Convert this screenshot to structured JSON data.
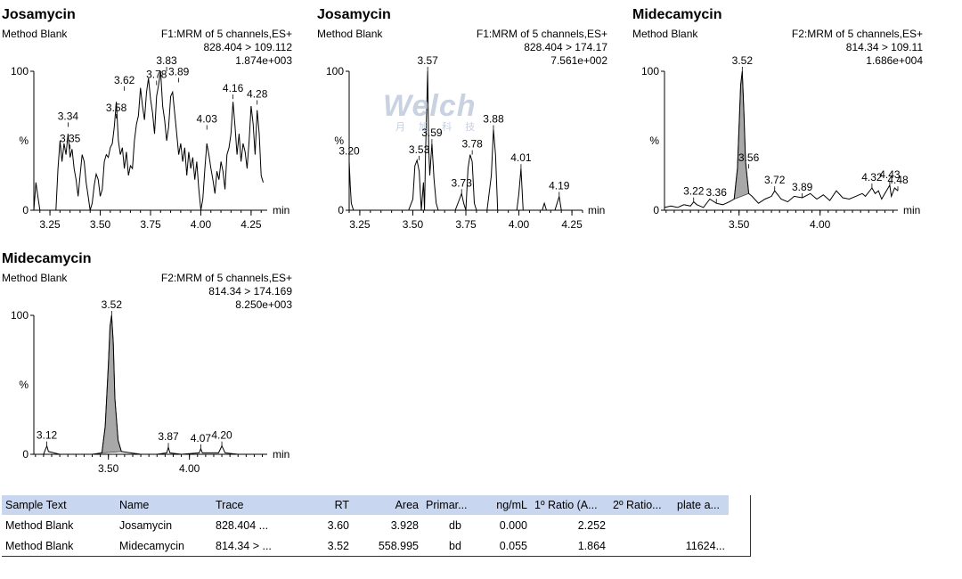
{
  "watermark": {
    "main": "Welch",
    "sub": "月 旭 科 技"
  },
  "chart_data": [
    {
      "type": "line",
      "compound": "Josamycin",
      "sample": "Method Blank",
      "header": [
        "F1:MRM of 5 channels,ES+",
        "828.404 > 109.112",
        "1.874e+003"
      ],
      "xlim": [
        3.17,
        4.33
      ],
      "xticks": [
        3.25,
        3.5,
        3.75,
        4.0,
        4.25
      ],
      "xtick_labels": [
        "3.25",
        "3.50",
        "3.75",
        "4.00",
        "4.25"
      ],
      "ylim": [
        0,
        100
      ],
      "yticks": [
        0,
        100
      ],
      "ylabel": "%",
      "xunit": "min",
      "x": [
        3.17,
        3.18,
        3.19,
        3.2,
        3.21,
        3.22,
        3.23,
        3.24,
        3.25,
        3.26,
        3.27,
        3.28,
        3.29,
        3.3,
        3.31,
        3.32,
        3.33,
        3.34,
        3.35,
        3.36,
        3.37,
        3.38,
        3.39,
        3.4,
        3.41,
        3.42,
        3.43,
        3.44,
        3.45,
        3.46,
        3.47,
        3.48,
        3.49,
        3.5,
        3.51,
        3.52,
        3.53,
        3.54,
        3.55,
        3.56,
        3.57,
        3.58,
        3.59,
        3.6,
        3.61,
        3.62,
        3.63,
        3.64,
        3.65,
        3.66,
        3.67,
        3.68,
        3.69,
        3.7,
        3.71,
        3.72,
        3.73,
        3.74,
        3.75,
        3.76,
        3.77,
        3.78,
        3.79,
        3.8,
        3.81,
        3.82,
        3.83,
        3.84,
        3.85,
        3.86,
        3.87,
        3.88,
        3.89,
        3.9,
        3.91,
        3.92,
        3.93,
        3.94,
        3.95,
        3.96,
        3.97,
        3.98,
        3.99,
        4.0,
        4.01,
        4.02,
        4.03,
        4.04,
        4.05,
        4.06,
        4.07,
        4.08,
        4.09,
        4.1,
        4.11,
        4.12,
        4.13,
        4.14,
        4.15,
        4.16,
        4.17,
        4.18,
        4.19,
        4.2,
        4.21,
        4.22,
        4.23,
        4.24,
        4.25,
        4.26,
        4.27,
        4.28,
        4.29,
        4.3,
        4.31
      ],
      "y": [
        0,
        20,
        10,
        0,
        0,
        0,
        0,
        0,
        0,
        0,
        0,
        0,
        30,
        50,
        35,
        48,
        40,
        55,
        38,
        44,
        30,
        22,
        10,
        25,
        40,
        35,
        20,
        10,
        0,
        5,
        18,
        26,
        22,
        10,
        15,
        35,
        40,
        38,
        45,
        48,
        60,
        78,
        50,
        40,
        45,
        30,
        42,
        25,
        32,
        30,
        50,
        62,
        68,
        88,
        75,
        65,
        85,
        95,
        80,
        70,
        55,
        82,
        90,
        100,
        75,
        65,
        50,
        60,
        82,
        85,
        70,
        55,
        40,
        48,
        35,
        45,
        25,
        42,
        30,
        38,
        22,
        35,
        15,
        0,
        8,
        30,
        48,
        40,
        30,
        22,
        12,
        28,
        22,
        35,
        28,
        15,
        40,
        45,
        55,
        78,
        60,
        40,
        55,
        35,
        48,
        42,
        30,
        50,
        75,
        62,
        40,
        72,
        55,
        25,
        20
      ],
      "shaded": [],
      "peak_labels": [
        {
          "x": 3.34,
          "y": 60,
          "text": "3.34"
        },
        {
          "x": 3.35,
          "y": 44,
          "text": "3.35"
        },
        {
          "x": 3.58,
          "y": 66,
          "text": "3.58"
        },
        {
          "x": 3.62,
          "y": 86,
          "text": "3.62"
        },
        {
          "x": 3.78,
          "y": 90,
          "text": "3.78"
        },
        {
          "x": 3.83,
          "y": 100,
          "text": "3.83"
        },
        {
          "x": 3.89,
          "y": 92,
          "text": "3.89"
        },
        {
          "x": 4.03,
          "y": 58,
          "text": "4.03"
        },
        {
          "x": 4.16,
          "y": 80,
          "text": "4.16"
        },
        {
          "x": 4.28,
          "y": 76,
          "text": "4.28"
        }
      ]
    },
    {
      "type": "line",
      "compound": "Josamycin",
      "sample": "Method Blank",
      "header": [
        "F1:MRM of 5 channels,ES+",
        "828.404 > 174.17",
        "7.561e+002"
      ],
      "xlim": [
        3.2,
        4.3
      ],
      "xticks": [
        3.25,
        3.5,
        3.75,
        4.0,
        4.25
      ],
      "xtick_labels": [
        "3.25",
        "3.50",
        "3.75",
        "4.00",
        "4.25"
      ],
      "ylim": [
        0,
        100
      ],
      "yticks": [
        0,
        100
      ],
      "ylabel": "%",
      "xunit": "min",
      "x": [
        3.2,
        3.205,
        3.21,
        3.22,
        3.3,
        3.4,
        3.48,
        3.5,
        3.51,
        3.52,
        3.53,
        3.54,
        3.55,
        3.555,
        3.56,
        3.57,
        3.575,
        3.58,
        3.59,
        3.6,
        3.61,
        3.62,
        3.63,
        3.7,
        3.72,
        3.73,
        3.74,
        3.75,
        3.76,
        3.77,
        3.78,
        3.79,
        3.8,
        3.85,
        3.87,
        3.88,
        3.89,
        3.9,
        3.95,
        3.99,
        4.0,
        4.01,
        4.02,
        4.1,
        4.11,
        4.12,
        4.13,
        4.17,
        4.18,
        4.19,
        4.2,
        4.3
      ],
      "y": [
        35,
        18,
        5,
        0,
        0,
        0,
        0,
        8,
        32,
        36,
        28,
        0,
        20,
        0,
        40,
        100,
        45,
        25,
        48,
        22,
        5,
        0,
        0,
        0,
        8,
        12,
        5,
        0,
        30,
        40,
        35,
        5,
        0,
        0,
        25,
        58,
        40,
        0,
        0,
        0,
        12,
        30,
        0,
        0,
        0,
        5,
        0,
        0,
        5,
        10,
        0,
        0
      ],
      "shaded": [],
      "peak_labels": [
        {
          "x": 3.2,
          "y": 35,
          "text": "3.20"
        },
        {
          "x": 3.53,
          "y": 36,
          "text": "3.53"
        },
        {
          "x": 3.57,
          "y": 100,
          "text": "3.57"
        },
        {
          "x": 3.59,
          "y": 48,
          "text": "3.59"
        },
        {
          "x": 3.73,
          "y": 12,
          "text": "3.73"
        },
        {
          "x": 3.78,
          "y": 40,
          "text": "3.78"
        },
        {
          "x": 3.88,
          "y": 58,
          "text": "3.88"
        },
        {
          "x": 4.01,
          "y": 30,
          "text": "4.01"
        },
        {
          "x": 4.19,
          "y": 10,
          "text": "4.19"
        }
      ]
    },
    {
      "type": "line",
      "compound": "Midecamycin",
      "sample": "Method Blank",
      "header": [
        "F2:MRM of 5 channels,ES+",
        "814.34 > 109.11",
        "1.686e+004"
      ],
      "xlim": [
        3.04,
        4.48
      ],
      "xticks": [
        3.5,
        4.0
      ],
      "xtick_labels": [
        "3.50",
        "4.00"
      ],
      "ylim": [
        0,
        100
      ],
      "yticks": [
        0,
        100
      ],
      "ylabel": "%",
      "xunit": "min",
      "x": [
        3.04,
        3.08,
        3.12,
        3.16,
        3.2,
        3.22,
        3.24,
        3.28,
        3.32,
        3.36,
        3.4,
        3.44,
        3.47,
        3.49,
        3.5,
        3.51,
        3.52,
        3.53,
        3.54,
        3.56,
        3.58,
        3.62,
        3.66,
        3.7,
        3.72,
        3.76,
        3.8,
        3.84,
        3.89,
        3.94,
        3.98,
        4.02,
        4.06,
        4.1,
        4.14,
        4.18,
        4.22,
        4.26,
        4.28,
        4.32,
        4.34,
        4.36,
        4.38,
        4.4,
        4.43,
        4.44,
        4.46,
        4.48
      ],
      "y": [
        2,
        3,
        2,
        4,
        3,
        6,
        4,
        2,
        8,
        5,
        4,
        6,
        8,
        30,
        60,
        90,
        100,
        70,
        35,
        12,
        10,
        5,
        8,
        10,
        14,
        8,
        6,
        10,
        9,
        12,
        8,
        11,
        7,
        14,
        9,
        8,
        10,
        12,
        10,
        16,
        12,
        14,
        8,
        12,
        18,
        10,
        16,
        14
      ],
      "shaded": [
        {
          "x0": 3.47,
          "x1": 3.56
        }
      ],
      "peak_labels": [
        {
          "x": 3.22,
          "y": 6,
          "text": "3.22"
        },
        {
          "x": 3.36,
          "y": 5,
          "text": "3.36"
        },
        {
          "x": 3.52,
          "y": 100,
          "text": "3.52"
        },
        {
          "x": 3.56,
          "y": 30,
          "text": "3.56"
        },
        {
          "x": 3.72,
          "y": 14,
          "text": "3.72"
        },
        {
          "x": 3.89,
          "y": 9,
          "text": "3.89"
        },
        {
          "x": 4.32,
          "y": 16,
          "text": "4.32"
        },
        {
          "x": 4.43,
          "y": 18,
          "text": "4.43"
        },
        {
          "x": 4.48,
          "y": 14,
          "text": "4.48"
        }
      ]
    },
    {
      "type": "line",
      "compound": "Midecamycin",
      "sample": "Method Blank",
      "header": [
        "F2:MRM of 5 channels,ES+",
        "814.34 > 174.169",
        "8.250e+003"
      ],
      "xlim": [
        3.04,
        4.48
      ],
      "xticks": [
        3.5,
        4.0
      ],
      "xtick_labels": [
        "3.50",
        "4.00"
      ],
      "ylim": [
        0,
        100
      ],
      "yticks": [
        0,
        100
      ],
      "ylabel": "%",
      "xunit": "min",
      "x": [
        3.04,
        3.1,
        3.11,
        3.12,
        3.13,
        3.2,
        3.3,
        3.4,
        3.46,
        3.48,
        3.5,
        3.51,
        3.52,
        3.53,
        3.54,
        3.56,
        3.58,
        3.7,
        3.8,
        3.86,
        3.87,
        3.88,
        3.95,
        4.06,
        4.07,
        4.08,
        4.18,
        4.2,
        4.22,
        4.3,
        4.48
      ],
      "y": [
        0,
        0,
        3,
        6,
        2,
        0,
        0,
        0,
        1,
        20,
        65,
        92,
        100,
        80,
        40,
        10,
        2,
        0,
        0,
        1,
        5,
        1,
        0,
        1,
        4,
        1,
        1,
        6,
        1,
        0,
        0
      ],
      "shaded": [
        {
          "x0": 3.46,
          "x1": 3.58
        }
      ],
      "peak_labels": [
        {
          "x": 3.12,
          "y": 6,
          "text": "3.12"
        },
        {
          "x": 3.52,
          "y": 100,
          "text": "3.52"
        },
        {
          "x": 3.87,
          "y": 5,
          "text": "3.87"
        },
        {
          "x": 4.07,
          "y": 4,
          "text": "4.07"
        },
        {
          "x": 4.2,
          "y": 6,
          "text": "4.20"
        }
      ]
    }
  ],
  "results_table": {
    "headers": [
      "Sample Text",
      "Name",
      "Trace",
      "RT",
      "Area",
      "Primar...",
      "ng/mL",
      "1º Ratio (A...",
      "2º Ratio...",
      "plate a..."
    ],
    "rows": [
      [
        "Method Blank",
        "Josamycin",
        "828.404 ...",
        "3.60",
        "3.928",
        "db",
        "0.000",
        "2.252",
        "",
        ""
      ],
      [
        "Method Blank",
        "Midecamycin",
        "814.34 > ...",
        "3.52",
        "558.995",
        "bd",
        "0.055",
        "1.864",
        "",
        "11624..."
      ]
    ]
  }
}
